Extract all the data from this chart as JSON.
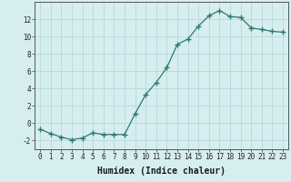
{
  "x": [
    0,
    1,
    2,
    3,
    4,
    5,
    6,
    7,
    8,
    9,
    10,
    11,
    12,
    13,
    14,
    15,
    16,
    17,
    18,
    19,
    20,
    21,
    22,
    23
  ],
  "y": [
    -0.7,
    -1.2,
    -1.6,
    -1.9,
    -1.7,
    -1.1,
    -1.3,
    -1.3,
    -1.3,
    1.1,
    3.3,
    4.7,
    6.4,
    9.1,
    9.7,
    11.2,
    12.4,
    13.0,
    12.3,
    12.2,
    11.0,
    10.8,
    10.6,
    10.5
  ],
  "line_color": "#2d7a6e",
  "marker": "+",
  "marker_size": 4,
  "bg_color": "#d6eef0",
  "grid_color": "#b8d8db",
  "xlabel": "Humidex (Indice chaleur)",
  "xlabel_fontsize": 7,
  "ylabel_ticks": [
    -2,
    0,
    2,
    4,
    6,
    8,
    10,
    12
  ],
  "xtick_labels": [
    "0",
    "1",
    "2",
    "3",
    "4",
    "5",
    "6",
    "7",
    "8",
    "9",
    "10",
    "11",
    "12",
    "13",
    "14",
    "15",
    "16",
    "17",
    "18",
    "19",
    "20",
    "21",
    "22",
    "23"
  ],
  "ylim": [
    -3,
    14
  ],
  "xlim": [
    -0.5,
    23.5
  ],
  "tick_fontsize": 5.5,
  "line_width": 0.9
}
